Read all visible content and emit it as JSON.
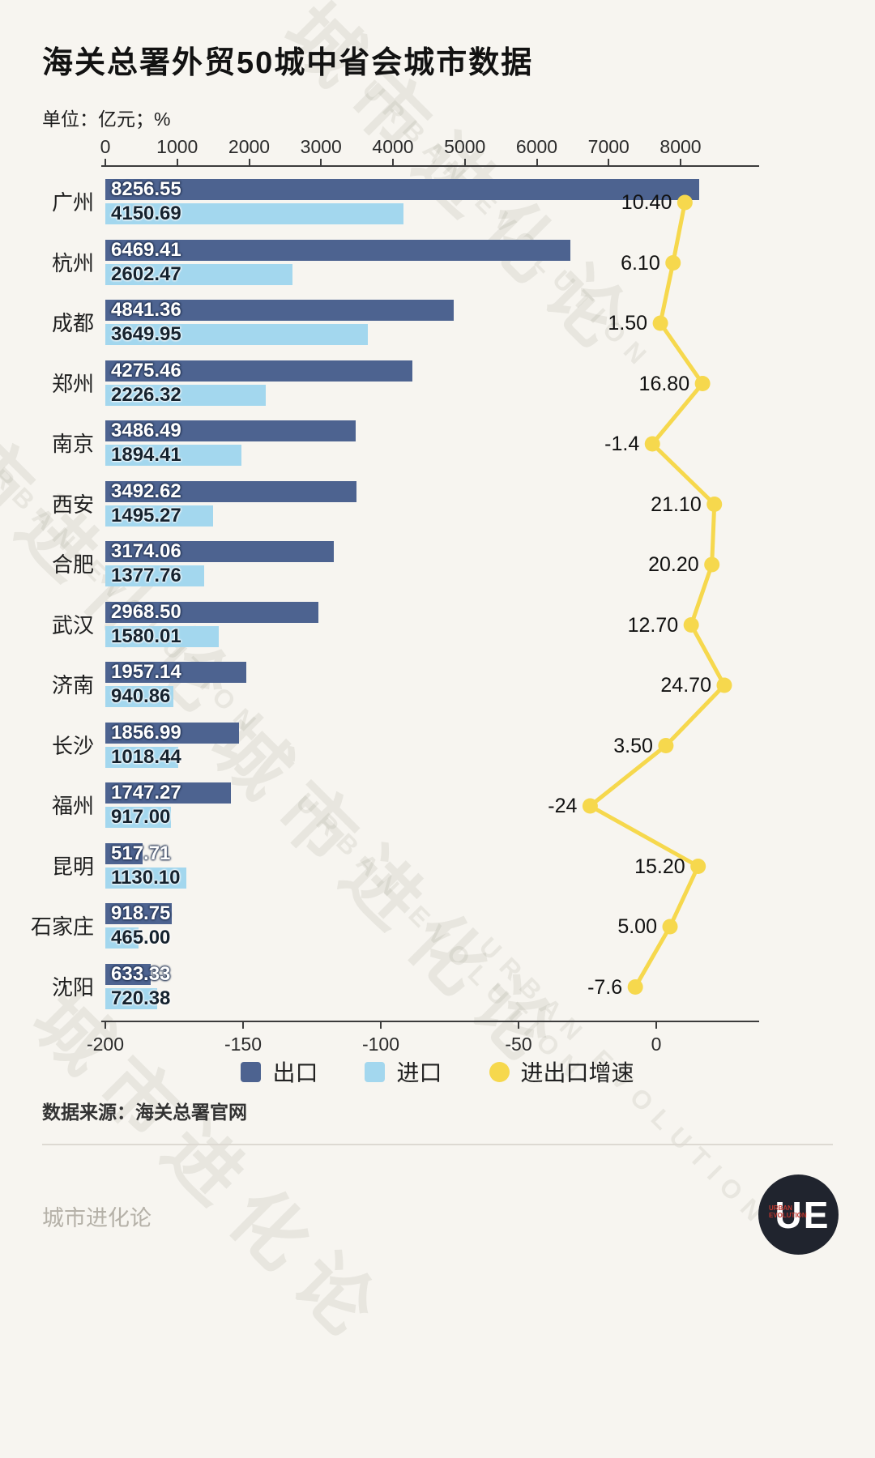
{
  "title": "海关总署外贸50城中省会城市数据",
  "unit_label": "单位：亿元；%",
  "source_note": "数据来源：海关总署官网",
  "footer": {
    "brand": "城市进化论",
    "logo_text": "UE",
    "logo_sub": "URBAN EVOLUTION"
  },
  "watermark": {
    "cn": "城市进化论",
    "en": "URBAN EVOLUTION"
  },
  "legend": [
    {
      "label": "出口",
      "color": "#4d6390",
      "shape": "square"
    },
    {
      "label": "进口",
      "color": "#a3d7ee",
      "shape": "square"
    },
    {
      "label": "进出口增速",
      "color": "#f6d84d",
      "shape": "circle"
    }
  ],
  "chart_data": {
    "type": "bar",
    "orientation": "horizontal",
    "title": "海关总署外贸50城中省会城市数据",
    "unit": "亿元; %",
    "grid": false,
    "legend_position": "bottom",
    "categories": [
      "广州",
      "杭州",
      "成都",
      "郑州",
      "南京",
      "西安",
      "合肥",
      "武汉",
      "济南",
      "长沙",
      "福州",
      "昆明",
      "石家庄",
      "沈阳"
    ],
    "series": [
      {
        "name": "出口",
        "type": "bar",
        "color": "#4d6390",
        "values": [
          8256.55,
          6469.41,
          4841.36,
          4275.46,
          3486.49,
          3492.62,
          3174.06,
          2968.5,
          1957.14,
          1856.99,
          1747.27,
          517.71,
          918.75,
          633.33
        ],
        "labels": [
          "8256.55",
          "6469.41",
          "4841.36",
          "4275.46",
          "3486.49",
          "3492.62",
          "3174.06",
          "2968.50",
          "1957.14",
          "1856.99",
          "1747.27",
          "517.71",
          "918.75",
          "633.33"
        ]
      },
      {
        "name": "进口",
        "type": "bar",
        "color": "#a3d7ee",
        "values": [
          4150.69,
          2602.47,
          3649.95,
          2226.32,
          1894.41,
          1495.27,
          1377.76,
          1580.01,
          940.86,
          1018.44,
          917.0,
          1130.1,
          465.0,
          720.38
        ],
        "labels": [
          "4150.69",
          "2602.47",
          "3649.95",
          "2226.32",
          "1894.41",
          "1495.27",
          "1377.76",
          "1580.01",
          "940.86",
          "1018.44",
          "917.00",
          "1130.10",
          "465.00",
          "720.38"
        ]
      },
      {
        "name": "进出口增速",
        "type": "line",
        "color": "#f6d84d",
        "values": [
          10.4,
          6.1,
          1.5,
          16.8,
          -1.4,
          21.1,
          20.2,
          12.7,
          24.7,
          3.5,
          -24,
          15.2,
          5.0,
          -7.6
        ],
        "labels": [
          "10.40",
          "6.10",
          "1.50",
          "16.80",
          "-1.4",
          "21.10",
          "20.20",
          "12.70",
          "24.70",
          "3.50",
          "-24",
          "15.20",
          "5.00",
          "-7.6"
        ]
      }
    ],
    "top_axis": {
      "ticks": [
        0,
        1000,
        2000,
        3000,
        4000,
        5000,
        6000,
        7000,
        8000
      ],
      "range": [
        0,
        9000
      ],
      "label": "亿元"
    },
    "bottom_axis": {
      "ticks": [
        -200,
        -150,
        -100,
        -50,
        0
      ],
      "range": [
        -200,
        30
      ],
      "label": "%"
    }
  }
}
